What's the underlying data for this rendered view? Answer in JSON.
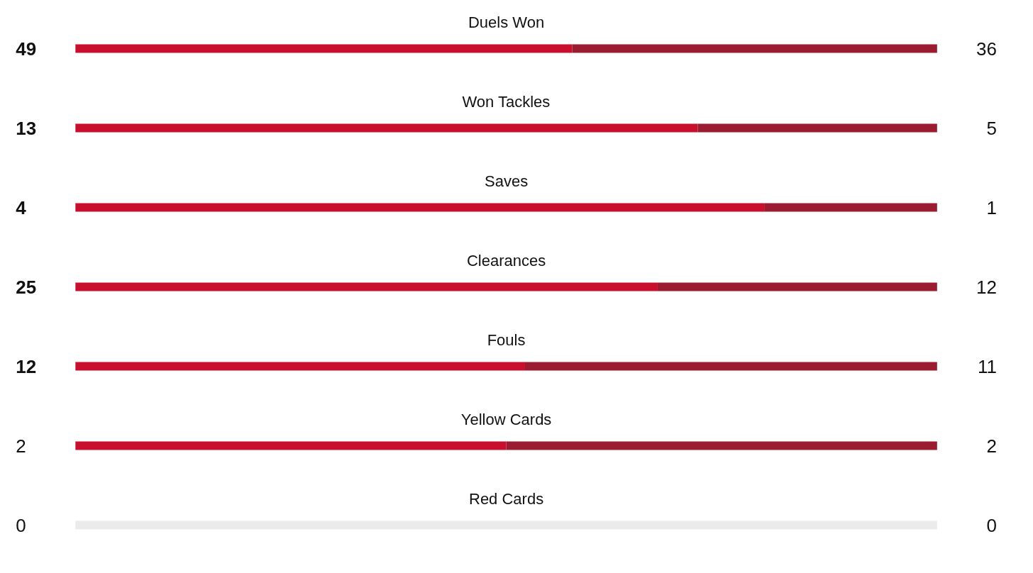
{
  "chart_data": [
    {
      "type": "bar",
      "orientation": "horizontal",
      "stacked": true,
      "categories": [
        "Duels Won"
      ],
      "xlim": [
        0,
        85
      ],
      "tick_labels": false,
      "data_labels": true,
      "series": [
        {
          "color": "#c8102e",
          "values": [
            49
          ]
        },
        {
          "color": "#9b1b30",
          "values": [
            36
          ]
        }
      ]
    },
    {
      "type": "bar",
      "orientation": "horizontal",
      "stacked": true,
      "categories": [
        "Won Tackles"
      ],
      "xlim": [
        0,
        18
      ],
      "tick_labels": false,
      "data_labels": true,
      "series": [
        {
          "color": "#c8102e",
          "values": [
            13
          ]
        },
        {
          "color": "#9b1b30",
          "values": [
            5
          ]
        }
      ]
    },
    {
      "type": "bar",
      "orientation": "horizontal",
      "stacked": true,
      "categories": [
        "Saves"
      ],
      "xlim": [
        0,
        5
      ],
      "tick_labels": false,
      "data_labels": true,
      "series": [
        {
          "color": "#c8102e",
          "values": [
            4
          ]
        },
        {
          "color": "#9b1b30",
          "values": [
            1
          ]
        }
      ]
    },
    {
      "type": "bar",
      "orientation": "horizontal",
      "stacked": true,
      "categories": [
        "Clearances"
      ],
      "xlim": [
        0,
        37
      ],
      "tick_labels": false,
      "data_labels": true,
      "series": [
        {
          "color": "#c8102e",
          "values": [
            25
          ]
        },
        {
          "color": "#9b1b30",
          "values": [
            12
          ]
        }
      ]
    },
    {
      "type": "bar",
      "orientation": "horizontal",
      "stacked": true,
      "categories": [
        "Fouls"
      ],
      "xlim": [
        0,
        23
      ],
      "tick_labels": false,
      "data_labels": true,
      "series": [
        {
          "color": "#c8102e",
          "values": [
            12
          ]
        },
        {
          "color": "#9b1b30",
          "values": [
            11
          ]
        }
      ]
    },
    {
      "type": "bar",
      "orientation": "horizontal",
      "stacked": true,
      "categories": [
        "Yellow Cards"
      ],
      "xlim": [
        0,
        4
      ],
      "tick_labels": false,
      "data_labels": true,
      "series": [
        {
          "color": "#c8102e",
          "values": [
            2
          ]
        },
        {
          "color": "#9b1b30",
          "values": [
            2
          ]
        }
      ]
    },
    {
      "type": "other",
      "categories": [
        "Red Cards"
      ],
      "data_labels": true,
      "series": [
        {
          "values": [
            0
          ]
        },
        {
          "values": [
            0
          ]
        }
      ]
    }
  ]
}
